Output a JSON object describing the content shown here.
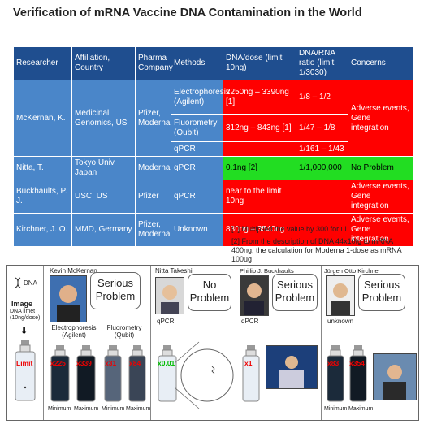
{
  "title": "Verification of mRNA Vaccine DNA Contamination in the World",
  "table": {
    "headers": [
      "Researcher",
      "Affiliation, Country",
      "Pharma Company",
      "Methods",
      "DNA/dose (limit 10ng)",
      "DNA/RNA ratio (limit 1/3030)",
      "Concerns"
    ],
    "mckernan": {
      "researcher": "McKernan, K.",
      "affiliation": "Medicinal Genomics, US",
      "pharma": "Pfizer, Moderna",
      "concerns": "Adverse events, Gene integration",
      "rows": [
        {
          "method": "Electrophoresis (Agilent)",
          "dna": "2250ng – 3390ng [1]",
          "ratio": "1/8 – 1/2"
        },
        {
          "method": "Fluorometry (Qubit)",
          "dna": "312ng – 843ng [1]",
          "ratio": "1/47 – 1/8"
        },
        {
          "method": "qPCR",
          "dna": "",
          "ratio": "1/161 – 1/43"
        }
      ]
    },
    "rows": [
      {
        "researcher": "Nitta, T.",
        "affiliation": "Tokyo Univ, Japan",
        "pharma": "Moderna",
        "method": "qPCR",
        "dna": "0.1ng [2]",
        "ratio": "1/1,000,000",
        "concerns": "No Problem"
      },
      {
        "researcher": "Buckhaults, P. J.",
        "affiliation": "USC, US",
        "pharma": "Pfizer",
        "method": "qPCR",
        "dna": "near to the limit 10ng",
        "ratio": "",
        "concerns": "Adverse events, Gene integration"
      },
      {
        "researcher": "Kirchner, J. O.",
        "affiliation": "MMD, Germany",
        "pharma": "Pfizer, Moderna",
        "method": "Unknown",
        "dna": "830ng – 3540ng",
        "ratio": "",
        "concerns": "Adverse events, Gene integration"
      }
    ]
  },
  "notes": [
    "[1] Multiplied the value by 300 for ul",
    "[2] From the description of DNA 44x10fg to mRNA 400ng, the calculation for Moderna 1-dose as mRNA 100ug"
  ],
  "panel": {
    "dna_label": "DNA",
    "image_label": "Image",
    "image_sub": "DNA limet (10ng/dose)",
    "limit_label": "Limit",
    "mckernan_name": "Kevin McKernan",
    "mckernan_bubble": "Serious Problem",
    "electrophoresis": "Electrophoresis (Agilent)",
    "fluorometry": "Fluorometry (Qubit)",
    "m1": "x225",
    "m2": "x339",
    "m3": "x31",
    "m4": "x84",
    "minimum": "Minimum",
    "maximum": "Maximum",
    "nitta_name": "Nitta Takeshi",
    "nitta_bubble": "No Problem",
    "nitta_method": "qPCR",
    "nitta_mult": "x0.01",
    "buck_name": "Phillip J. Buckhaults",
    "buck_bubble": "Serious Problem",
    "buck_method": "qPCR",
    "buck_mult": "x1",
    "kirch_name": "Jürgen Otto Kirchner",
    "kirch_bubble": "Serious Problem",
    "kirch_method": "unknown",
    "k1": "x83",
    "k2": "x354",
    "colors": {
      "header": "#1f4e8f",
      "cell": "#4a86c9",
      "red": "#ff0000",
      "green": "#22dd22"
    }
  }
}
